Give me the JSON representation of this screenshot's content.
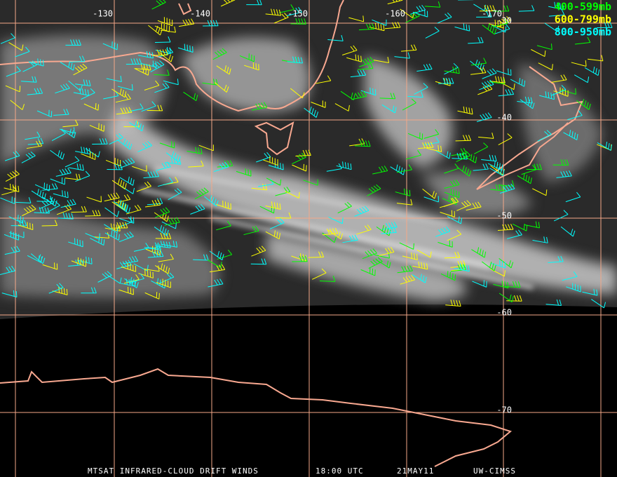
{
  "map": {
    "longitude_labels": [
      "-130",
      "-140",
      "-150",
      "-160",
      "-170"
    ],
    "latitude_labels": [
      "-30",
      "-40",
      "-50",
      "-60",
      "-70"
    ],
    "legend": [
      {
        "label": "400-599mb",
        "color": "#00ff00"
      },
      {
        "label": "600-799mb",
        "color": "#ffff00"
      },
      {
        "label": "800-950mb",
        "color": "#00ffff"
      }
    ],
    "footer": {
      "product": "MTSAT INFRARED-CLOUD DRIFT WINDS",
      "time": "18:00 UTC",
      "date": "21MAY11",
      "source": "UW-CIMSS"
    }
  }
}
